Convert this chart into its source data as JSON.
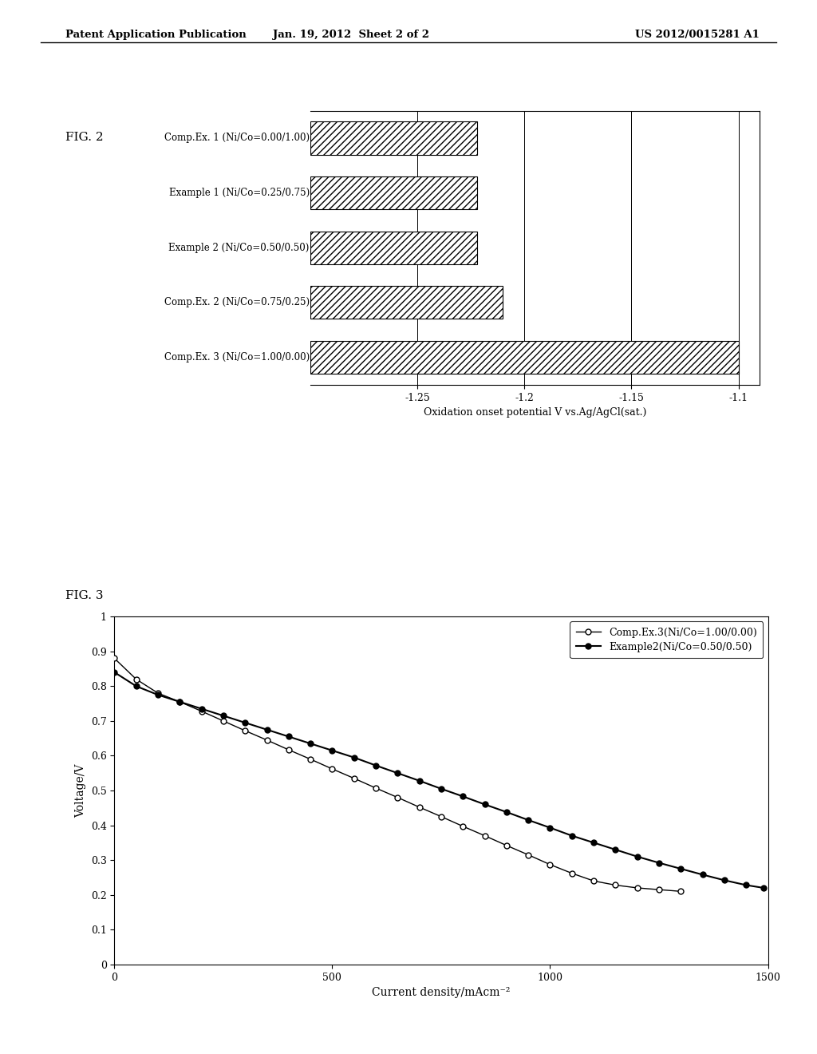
{
  "header_left": "Patent Application Publication",
  "header_center": "Jan. 19, 2012  Sheet 2 of 2",
  "header_right": "US 2012/0015281 A1",
  "fig2_title": "FIG. 2",
  "bar_labels": [
    "Comp.Ex. 1 (Ni/Co=0.00/1.00)",
    "Example 1 (Ni/Co=0.25/0.75)",
    "Example 2 (Ni/Co=0.50/0.50)",
    "Comp.Ex. 2 (Ni/Co=0.75/0.25)",
    "Comp.Ex. 3 (Ni/Co=1.00/0.00)"
  ],
  "bar_values": [
    -1.222,
    -1.222,
    -1.222,
    -1.21,
    -1.1
  ],
  "bar_xlim_min": -1.3,
  "bar_xlim_max": -1.09,
  "bar_xticks": [
    -1.25,
    -1.2,
    -1.15,
    -1.1
  ],
  "bar_xlabel": "Oxidation onset potential V vs.Ag/AgCl(sat.)",
  "fig3_title": "FIG. 3",
  "line1_label": "Comp.Ex.3(Ni/Co=1.00/0.00)",
  "line2_label": "Example2(Ni/Co=0.50/0.50)",
  "line1_x": [
    0,
    50,
    100,
    150,
    200,
    250,
    300,
    350,
    400,
    450,
    500,
    550,
    600,
    650,
    700,
    750,
    800,
    850,
    900,
    950,
    1000,
    1050,
    1100,
    1150,
    1200,
    1250,
    1300
  ],
  "line1_y": [
    0.88,
    0.82,
    0.78,
    0.755,
    0.728,
    0.7,
    0.672,
    0.645,
    0.617,
    0.59,
    0.562,
    0.535,
    0.507,
    0.48,
    0.452,
    0.425,
    0.397,
    0.37,
    0.342,
    0.315,
    0.287,
    0.262,
    0.24,
    0.228,
    0.22,
    0.215,
    0.21
  ],
  "line2_x": [
    0,
    50,
    100,
    150,
    200,
    250,
    300,
    350,
    400,
    450,
    500,
    550,
    600,
    650,
    700,
    750,
    800,
    850,
    900,
    950,
    1000,
    1050,
    1100,
    1150,
    1200,
    1250,
    1300,
    1350,
    1400,
    1450,
    1490
  ],
  "line2_y": [
    0.84,
    0.8,
    0.775,
    0.755,
    0.735,
    0.715,
    0.695,
    0.675,
    0.655,
    0.635,
    0.615,
    0.595,
    0.572,
    0.55,
    0.528,
    0.505,
    0.483,
    0.46,
    0.438,
    0.415,
    0.393,
    0.37,
    0.35,
    0.33,
    0.31,
    0.292,
    0.275,
    0.258,
    0.242,
    0.228,
    0.22
  ],
  "fig3_ylabel": "Voltage/V",
  "fig3_xlabel": "Current density/mAcm⁻²",
  "fig3_ylim": [
    0,
    1.0
  ],
  "fig3_xlim": [
    0,
    1500
  ],
  "fig3_yticks": [
    0,
    0.1,
    0.2,
    0.3,
    0.4,
    0.5,
    0.6,
    0.7,
    0.8,
    0.9,
    1.0
  ],
  "fig3_xticks": [
    0,
    500,
    1000,
    1500
  ],
  "bg_color": "#ffffff",
  "text_color": "#000000",
  "hatch_pattern": "////"
}
